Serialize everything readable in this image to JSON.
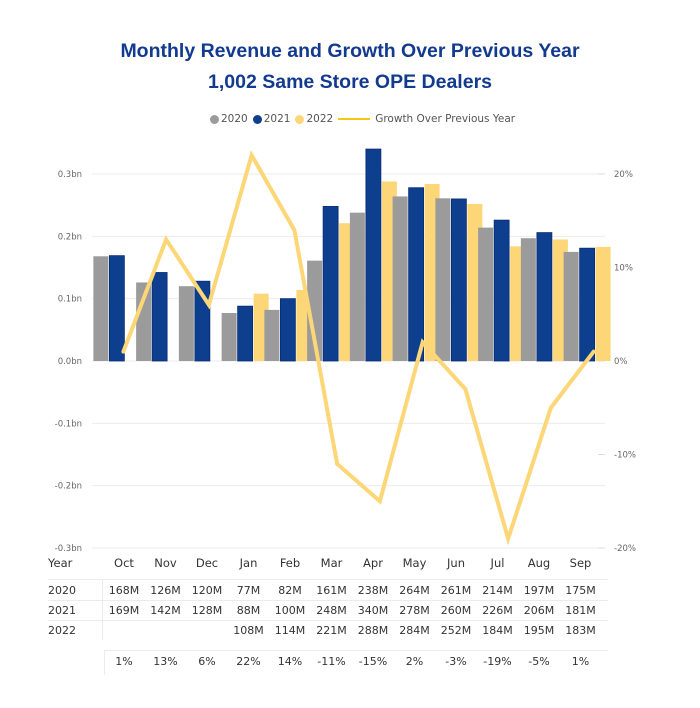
{
  "title_line1": "Monthly Revenue and Growth Over Previous Year",
  "title_line2": "1,002 Same Store OPE Dealers",
  "colors": {
    "title": "#123a8f",
    "2020": "#9b9b9b",
    "2021": "#0e3f8f",
    "2022": "#fcd677",
    "growth_line": "#fcd677",
    "gridline": "#ebebeb"
  },
  "legend": [
    {
      "label": "2020",
      "type": "dot",
      "color": "#9b9b9b"
    },
    {
      "label": "2021",
      "type": "dot",
      "color": "#0e3f8f"
    },
    {
      "label": "2022",
      "type": "dot",
      "color": "#fcd677"
    },
    {
      "label": "Growth Over Previous Year",
      "type": "line",
      "color": "#f5c518"
    }
  ],
  "chart_data": {
    "type": "bar",
    "title": "Monthly Revenue and Growth Over Previous Year",
    "subtitle": "1,002 Same Store OPE Dealers",
    "categories": [
      "Oct",
      "Nov",
      "Dec",
      "Jan",
      "Feb",
      "Mar",
      "Apr",
      "May",
      "Jun",
      "Jul",
      "Aug",
      "Sep"
    ],
    "series": [
      {
        "name": "2020",
        "type": "bar",
        "axis": "left",
        "values": [
          168,
          126,
          120,
          77,
          82,
          161,
          238,
          264,
          261,
          214,
          197,
          175
        ],
        "unit": "M"
      },
      {
        "name": "2021",
        "type": "bar",
        "axis": "left",
        "values": [
          169,
          142,
          128,
          88,
          100,
          248,
          340,
          278,
          260,
          226,
          206,
          181
        ],
        "unit": "M"
      },
      {
        "name": "2022",
        "type": "bar",
        "axis": "left",
        "values": [
          null,
          null,
          null,
          108,
          114,
          221,
          288,
          284,
          252,
          184,
          195,
          183
        ],
        "unit": "M"
      },
      {
        "name": "Growth Over Previous Year",
        "type": "line",
        "axis": "right",
        "values": [
          1,
          13,
          6,
          22,
          14,
          -11,
          -15,
          2,
          -3,
          -19,
          -5,
          1
        ],
        "unit": "%"
      }
    ],
    "left_axis": {
      "ylim": [
        -0.3,
        0.3
      ],
      "unit": "bn",
      "ticks": [
        "0.3bn",
        "0.2bn",
        "0.1bn",
        "0.0bn",
        "-0.1bn",
        "-0.2bn",
        "-0.3bn"
      ],
      "tick_values": [
        0.3,
        0.2,
        0.1,
        0.0,
        -0.1,
        -0.2,
        -0.3
      ]
    },
    "right_axis": {
      "ylim": [
        -20,
        20
      ],
      "ticks": [
        "20%",
        "10%",
        "0%",
        "-10%",
        "-20%"
      ],
      "tick_values": [
        20,
        10,
        0,
        -10,
        -20
      ]
    },
    "grid": true,
    "legend_position": "top-center"
  },
  "table": {
    "header_label": "Year",
    "months": [
      "Oct",
      "Nov",
      "Dec",
      "Jan",
      "Feb",
      "Mar",
      "Apr",
      "May",
      "Jun",
      "Jul",
      "Aug",
      "Sep"
    ],
    "rows": [
      {
        "year": "2020",
        "cells": [
          "168M",
          "126M",
          "120M",
          "77M",
          "82M",
          "161M",
          "238M",
          "264M",
          "261M",
          "214M",
          "197M",
          "175M"
        ]
      },
      {
        "year": "2021",
        "cells": [
          "169M",
          "142M",
          "128M",
          "88M",
          "100M",
          "248M",
          "340M",
          "278M",
          "260M",
          "226M",
          "206M",
          "181M"
        ]
      },
      {
        "year": "2022",
        "cells": [
          "",
          "",
          "",
          "108M",
          "114M",
          "221M",
          "288M",
          "284M",
          "252M",
          "184M",
          "195M",
          "183M"
        ]
      }
    ],
    "growth": [
      "1%",
      "13%",
      "6%",
      "22%",
      "14%",
      "-11%",
      "-15%",
      "2%",
      "-3%",
      "-19%",
      "-5%",
      "1%"
    ]
  }
}
